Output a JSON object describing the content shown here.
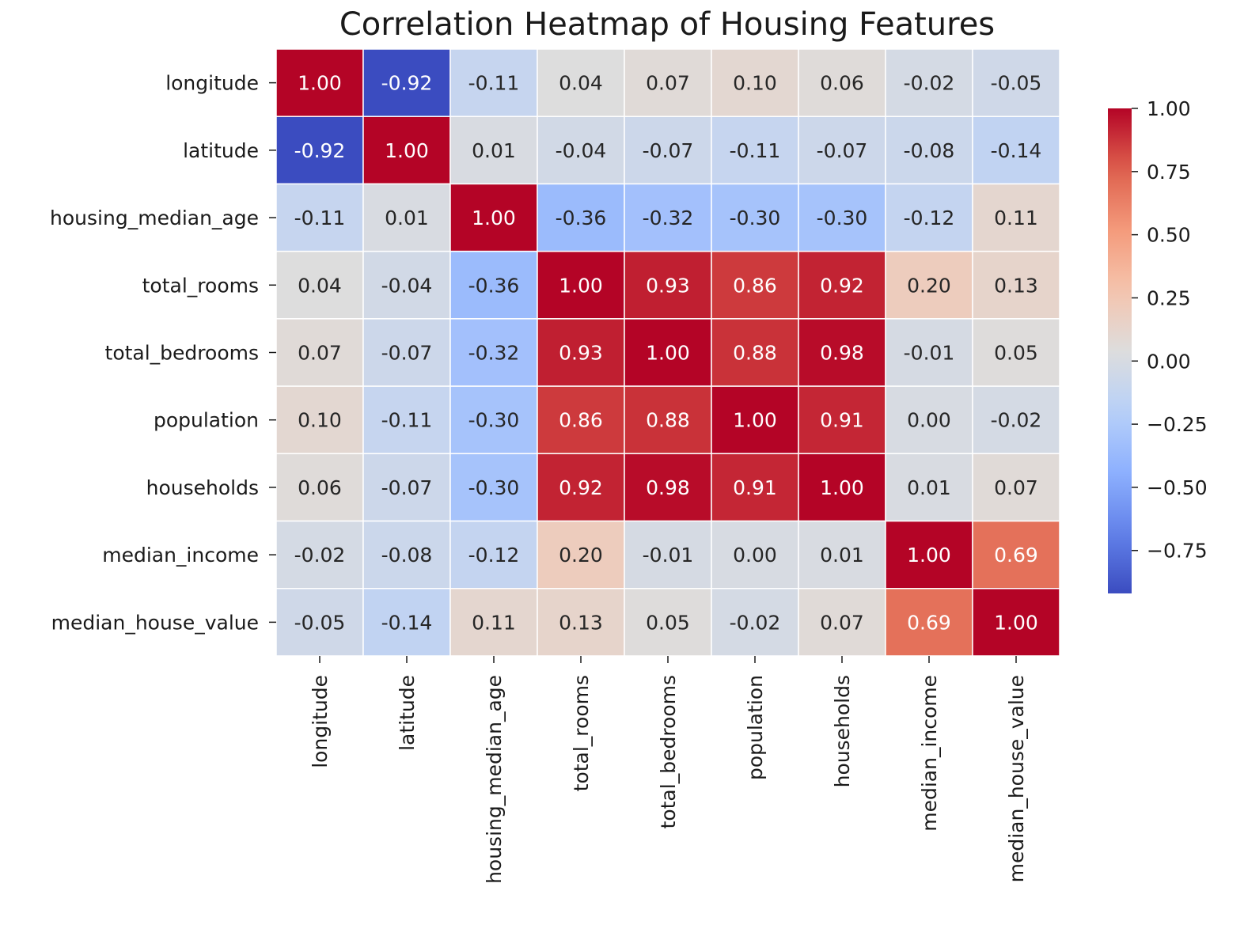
{
  "chart_data": {
    "type": "heatmap",
    "title": "Correlation Heatmap of Housing Features",
    "xlabel": "",
    "ylabel": "",
    "row_labels": [
      "longitude",
      "latitude",
      "housing_median_age",
      "total_rooms",
      "total_bedrooms",
      "population",
      "households",
      "median_income",
      "median_house_value"
    ],
    "col_labels": [
      "longitude",
      "latitude",
      "housing_median_age",
      "total_rooms",
      "total_bedrooms",
      "population",
      "households",
      "median_income",
      "median_house_value"
    ],
    "values": [
      [
        1.0,
        -0.92,
        -0.11,
        0.04,
        0.07,
        0.1,
        0.06,
        -0.02,
        -0.05
      ],
      [
        -0.92,
        1.0,
        0.01,
        -0.04,
        -0.07,
        -0.11,
        -0.07,
        -0.08,
        -0.14
      ],
      [
        -0.11,
        0.01,
        1.0,
        -0.36,
        -0.32,
        -0.3,
        -0.3,
        -0.12,
        0.11
      ],
      [
        0.04,
        -0.04,
        -0.36,
        1.0,
        0.93,
        0.86,
        0.92,
        0.2,
        0.13
      ],
      [
        0.07,
        -0.07,
        -0.32,
        0.93,
        1.0,
        0.88,
        0.98,
        -0.01,
        0.05
      ],
      [
        0.1,
        -0.11,
        -0.3,
        0.86,
        0.88,
        1.0,
        0.91,
        0.0,
        -0.02
      ],
      [
        0.06,
        -0.07,
        -0.3,
        0.92,
        0.98,
        0.91,
        1.0,
        0.01,
        0.07
      ],
      [
        -0.02,
        -0.08,
        -0.12,
        0.2,
        -0.01,
        0.0,
        0.01,
        1.0,
        0.69
      ],
      [
        -0.05,
        -0.14,
        0.11,
        0.13,
        0.05,
        -0.02,
        0.07,
        0.69,
        1.0
      ]
    ],
    "value_format": "0.00",
    "colormap": "coolwarm",
    "vmin": -0.92,
    "vmax": 1.0,
    "colorbar": {
      "ticks": [
        1.0,
        0.75,
        0.5,
        0.25,
        0.0,
        -0.25,
        -0.5,
        -0.75
      ],
      "tick_labels": [
        "1.00",
        "0.75",
        "0.50",
        "0.25",
        "0.00",
        "−0.25",
        "−0.50",
        "−0.75"
      ],
      "placement": "right"
    },
    "grid": false,
    "cell_border_color": "#ffffff"
  }
}
